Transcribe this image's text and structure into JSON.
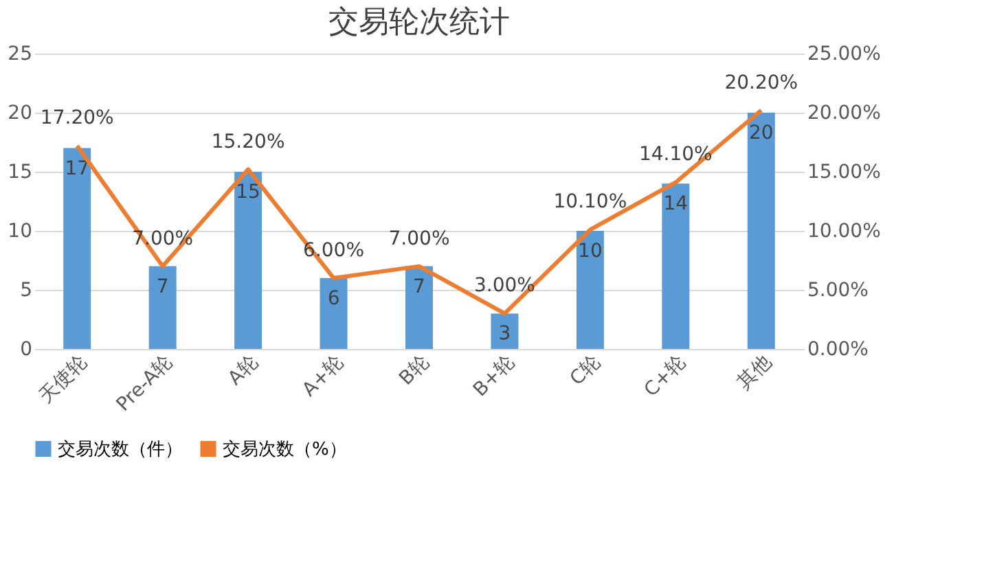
{
  "chart_data": {
    "type": "bar",
    "title": "交易轮次统计",
    "categories": [
      "天使轮",
      "Pre-A轮",
      "A轮",
      "A+轮",
      "B轮",
      "B+轮",
      "C轮",
      "C+轮",
      "其他"
    ],
    "series": [
      {
        "name": "交易次数（件）",
        "color": "#5b9bd5",
        "values": [
          17,
          7,
          15,
          6,
          7,
          3,
          10,
          14,
          20
        ],
        "value_labels": [
          "17",
          "7",
          "15",
          "6",
          "7",
          "3",
          "10",
          "14",
          "20"
        ]
      },
      {
        "name": "交易次数（%）",
        "type": "line",
        "axis": "y2",
        "color": "#ed7d31",
        "values": [
          17.2,
          7.0,
          15.2,
          6.0,
          7.0,
          3.0,
          10.1,
          14.1,
          20.2
        ],
        "value_labels": [
          "17.20%",
          "7.00%",
          "15.20%",
          "6.00%",
          "7.00%",
          "3.00%",
          "10.10%",
          "14.10%",
          "20.20%"
        ]
      }
    ],
    "ylim": [
      0,
      25
    ],
    "yticks": [
      0,
      5,
      10,
      15,
      20,
      25
    ],
    "y2lim": [
      0,
      25
    ],
    "y2ticks": [
      {
        "value": 0,
        "label": "0.00%"
      },
      {
        "value": 5,
        "label": "5.00%"
      },
      {
        "value": 10,
        "label": "10.00%"
      },
      {
        "value": 15,
        "label": "15.00%"
      },
      {
        "value": 20,
        "label": "20.00%"
      },
      {
        "value": 25,
        "label": "25.00%"
      }
    ],
    "grid": "y",
    "legend": "bottom",
    "marker": "none",
    "line_style": "solid"
  }
}
